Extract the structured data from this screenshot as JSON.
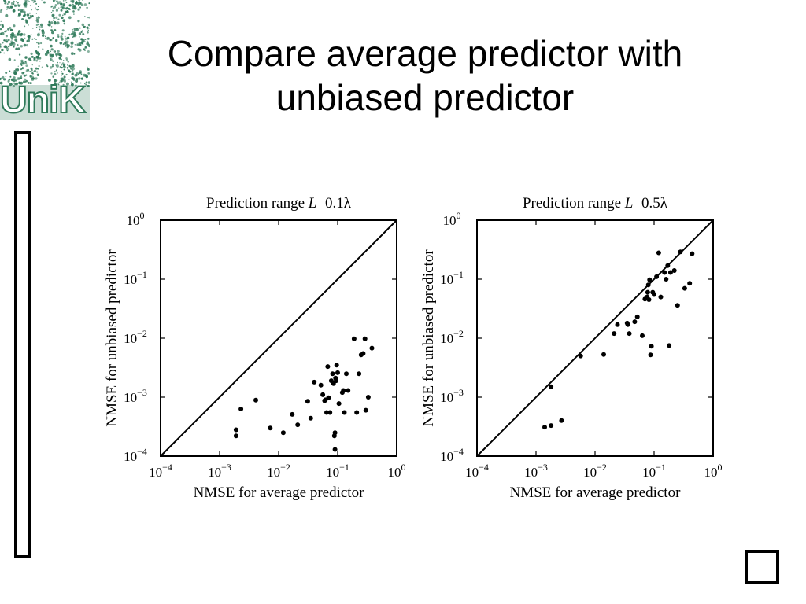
{
  "title": "Compare average predictor with unbiased predictor",
  "logo": {
    "text": "UniK",
    "color": "#2f7a5a"
  },
  "chart_data": [
    {
      "type": "scatter",
      "title_prefix": "Prediction range",
      "title_var": "L",
      "title_value": "=0.1λ",
      "xlabel": "NMSE for average predictor",
      "ylabel": "NMSE for unbiased predictor",
      "xscale": "log",
      "yscale": "log",
      "xlim": [
        0.0001,
        1
      ],
      "ylim": [
        0.0001,
        1
      ],
      "ticks": [
        {
          "base": "10",
          "exp": "−4"
        },
        {
          "base": "10",
          "exp": "−3"
        },
        {
          "base": "10",
          "exp": "−2"
        },
        {
          "base": "10",
          "exp": "−1"
        },
        {
          "base": "10",
          "exp": "0"
        }
      ],
      "reference_line": "y = x",
      "points": [
        [
          0.0019,
          0.00028
        ],
        [
          0.0019,
          0.00022
        ],
        [
          0.0023,
          0.00063
        ],
        [
          0.0041,
          0.00089
        ],
        [
          0.0072,
          0.0003
        ],
        [
          0.012,
          0.00025
        ],
        [
          0.017,
          0.00051
        ],
        [
          0.021,
          0.00034
        ],
        [
          0.031,
          0.00085
        ],
        [
          0.035,
          0.00044
        ],
        [
          0.04,
          0.0018
        ],
        [
          0.052,
          0.0016
        ],
        [
          0.056,
          0.0011
        ],
        [
          0.06,
          0.00087
        ],
        [
          0.062,
          0.0009
        ],
        [
          0.065,
          0.00055
        ],
        [
          0.068,
          0.0033
        ],
        [
          0.07,
          0.00098
        ],
        [
          0.074,
          0.00055
        ],
        [
          0.078,
          0.0019
        ],
        [
          0.082,
          0.0025
        ],
        [
          0.085,
          0.0017
        ],
        [
          0.088,
          0.00022
        ],
        [
          0.09,
          0.00025
        ],
        [
          0.09,
          0.00013
        ],
        [
          0.092,
          0.0021
        ],
        [
          0.094,
          0.0019
        ],
        [
          0.096,
          0.0035
        ],
        [
          0.1,
          0.0026
        ],
        [
          0.105,
          0.00078
        ],
        [
          0.12,
          0.0012
        ],
        [
          0.125,
          0.0013
        ],
        [
          0.13,
          0.00055
        ],
        [
          0.14,
          0.0025
        ],
        [
          0.15,
          0.0013
        ],
        [
          0.19,
          0.0098
        ],
        [
          0.21,
          0.00055
        ],
        [
          0.23,
          0.0025
        ],
        [
          0.25,
          0.0052
        ],
        [
          0.27,
          0.0055
        ],
        [
          0.29,
          0.0098
        ],
        [
          0.3,
          0.0006
        ],
        [
          0.33,
          0.001
        ],
        [
          0.38,
          0.0068
        ]
      ]
    },
    {
      "type": "scatter",
      "title_prefix": "Prediction range",
      "title_var": "L",
      "title_value": "=0.5λ",
      "xlabel": "NMSE for average predictor",
      "ylabel": "NMSE for unbiased predictor",
      "xscale": "log",
      "yscale": "log",
      "xlim": [
        0.0001,
        1
      ],
      "ylim": [
        0.0001,
        1
      ],
      "ticks": [
        {
          "base": "10",
          "exp": "−4"
        },
        {
          "base": "10",
          "exp": "−3"
        },
        {
          "base": "10",
          "exp": "−2"
        },
        {
          "base": "10",
          "exp": "−1"
        },
        {
          "base": "10",
          "exp": "0"
        }
      ],
      "reference_line": "y = x",
      "points": [
        [
          0.0014,
          0.00031
        ],
        [
          0.0018,
          0.00033
        ],
        [
          0.0018,
          0.0015
        ],
        [
          0.0027,
          0.0004
        ],
        [
          0.0057,
          0.005
        ],
        [
          0.014,
          0.0053
        ],
        [
          0.021,
          0.012
        ],
        [
          0.024,
          0.017
        ],
        [
          0.035,
          0.018
        ],
        [
          0.036,
          0.017
        ],
        [
          0.038,
          0.012
        ],
        [
          0.047,
          0.019
        ],
        [
          0.052,
          0.023
        ],
        [
          0.063,
          0.011
        ],
        [
          0.07,
          0.046
        ],
        [
          0.076,
          0.05
        ],
        [
          0.078,
          0.06
        ],
        [
          0.08,
          0.08
        ],
        [
          0.082,
          0.045
        ],
        [
          0.084,
          0.098
        ],
        [
          0.087,
          0.0052
        ],
        [
          0.09,
          0.0073
        ],
        [
          0.095,
          0.06
        ],
        [
          0.1,
          0.055
        ],
        [
          0.11,
          0.11
        ],
        [
          0.12,
          0.28
        ],
        [
          0.13,
          0.05
        ],
        [
          0.15,
          0.13
        ],
        [
          0.16,
          0.1
        ],
        [
          0.17,
          0.17
        ],
        [
          0.18,
          0.0075
        ],
        [
          0.19,
          0.13
        ],
        [
          0.22,
          0.14
        ],
        [
          0.25,
          0.036
        ],
        [
          0.28,
          0.29
        ],
        [
          0.33,
          0.07
        ],
        [
          0.4,
          0.085
        ],
        [
          0.44,
          0.27
        ]
      ]
    }
  ]
}
